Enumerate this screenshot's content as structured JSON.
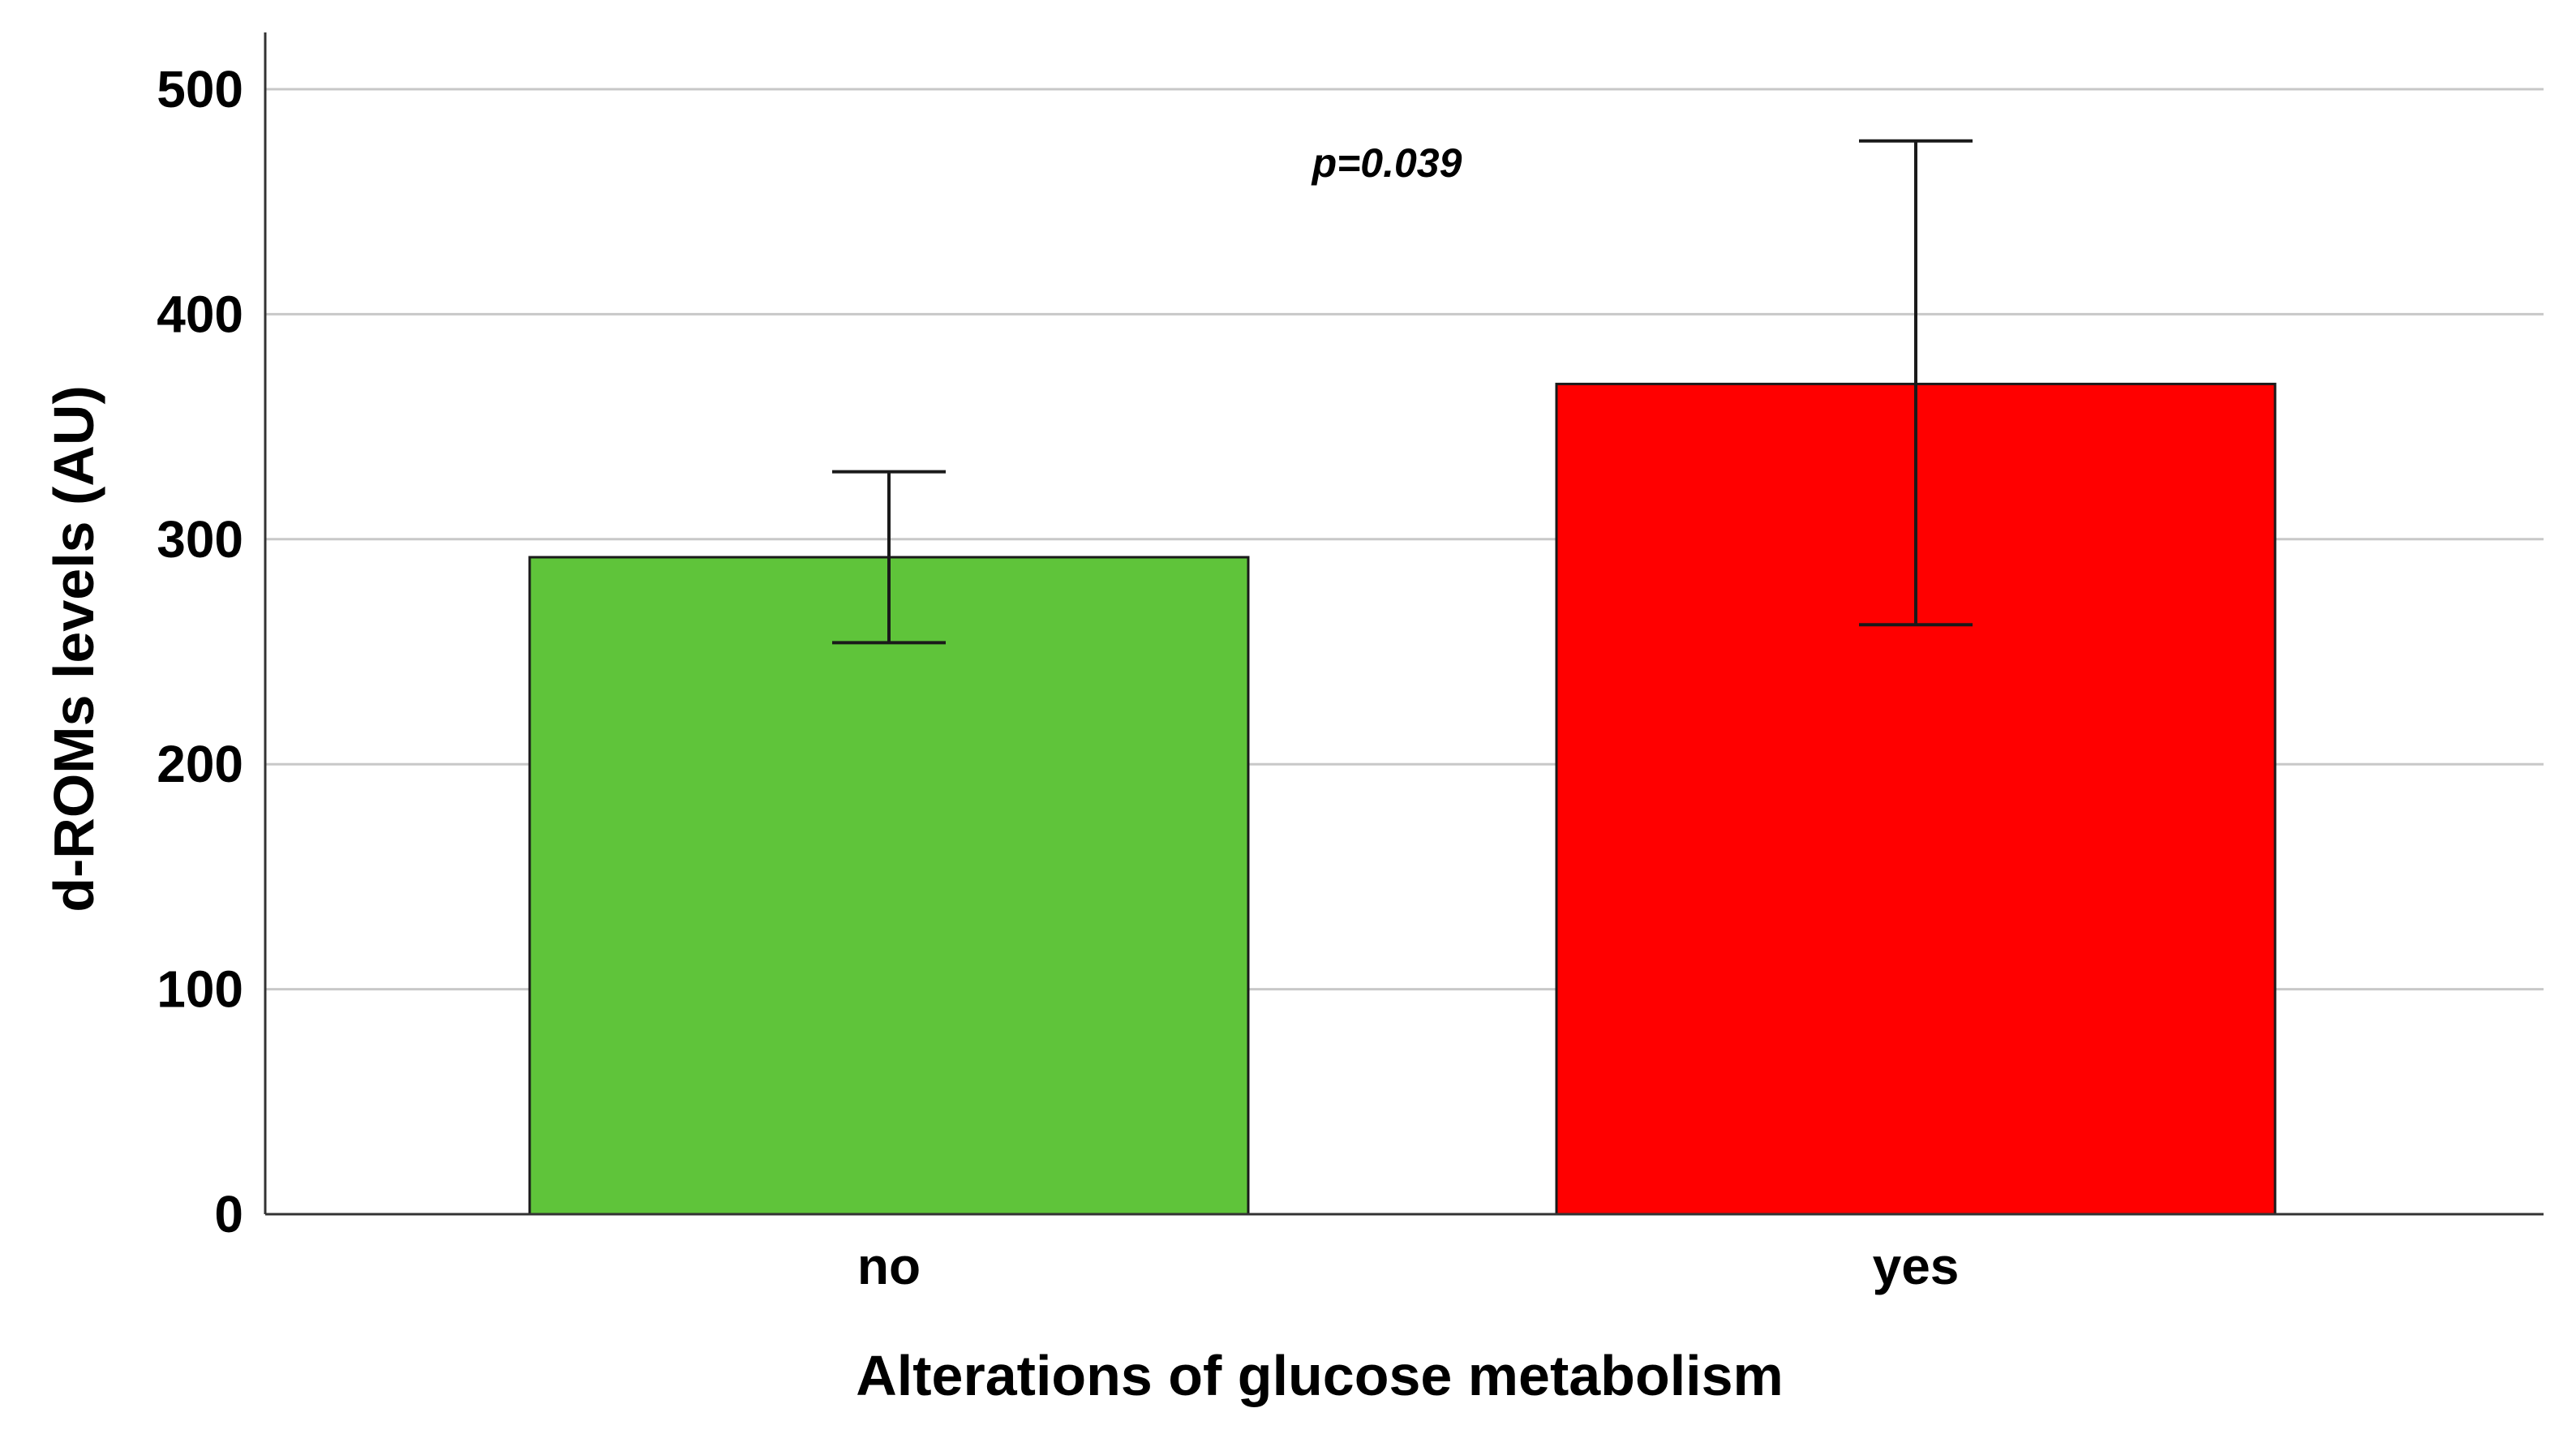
{
  "chart_data": {
    "type": "bar",
    "title": "",
    "categories": [
      "no",
      "yes"
    ],
    "values": [
      292,
      369
    ],
    "error_bars": [
      {
        "low": 254,
        "high": 330
      },
      {
        "low": 262,
        "high": 477
      }
    ],
    "colors": [
      "#5fc43a",
      "#ff0000"
    ],
    "xlabel": "Alterations of glucose metabolism",
    "ylabel": "d-ROMs levels  (AU)",
    "ylim": [
      0,
      500
    ],
    "yticks": [
      0,
      100,
      200,
      300,
      400,
      500
    ],
    "grid": true,
    "annotation": "p=0.039"
  }
}
